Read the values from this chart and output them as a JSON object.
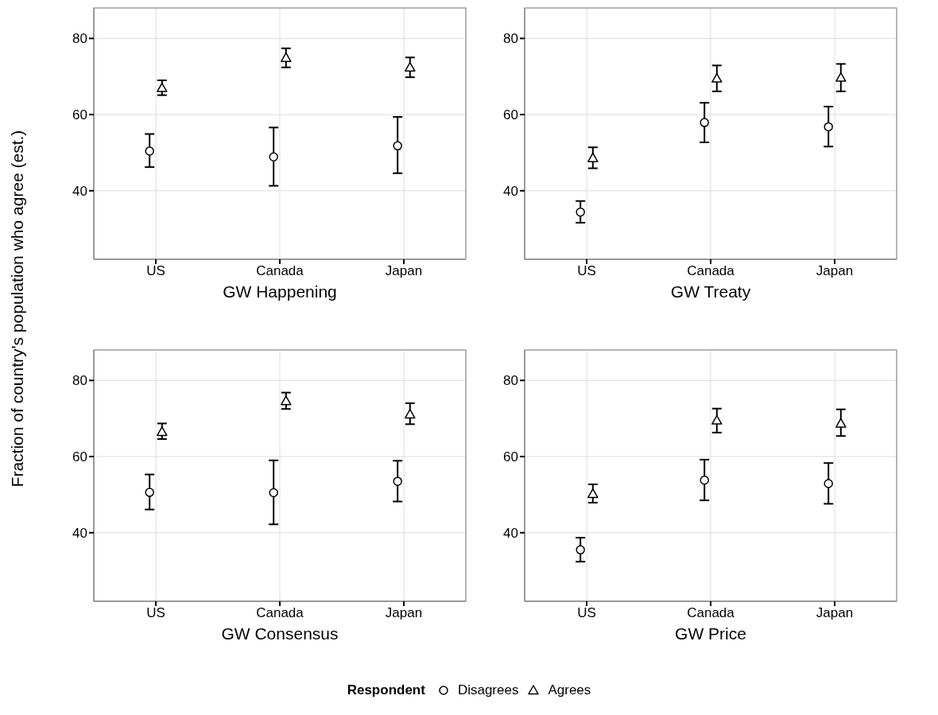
{
  "chart_data": [
    {
      "type": "scatter",
      "xlabel": "GW Happening",
      "ylabel": "Fraction of country's population who agree (est.)",
      "legend": "bottom",
      "legend_title": "Respondent",
      "grid": true,
      "categories": [
        "US",
        "Canada",
        "Japan"
      ],
      "ylim": [
        22,
        88
      ],
      "yticks": [
        40,
        60,
        80
      ],
      "series": [
        {
          "name": "Disagrees",
          "color": "#000000",
          "marker": "circle",
          "values": [
            50.4,
            48.9,
            51.8
          ],
          "errors": [
            [
              46.2,
              54.9
            ],
            [
              41.3,
              56.6
            ],
            [
              44.6,
              59.4
            ]
          ]
        },
        {
          "name": "Agrees",
          "color": "#000000",
          "marker": "triangle",
          "values": [
            67.0,
            74.9,
            72.4
          ],
          "errors": [
            [
              65.1,
              69.0
            ],
            [
              72.4,
              77.4
            ],
            [
              69.8,
              75.0
            ]
          ]
        }
      ]
    },
    {
      "type": "scatter",
      "xlabel": "GW Treaty",
      "grid": true,
      "categories": [
        "US",
        "Canada",
        "Japan"
      ],
      "ylim": [
        22,
        88
      ],
      "yticks": [
        40,
        60,
        80
      ],
      "series": [
        {
          "color": "#000000",
          "marker": "circle",
          "values": [
            34.4,
            57.9,
            56.8
          ],
          "errors": [
            [
              31.6,
              37.3
            ],
            [
              52.7,
              63.1
            ],
            [
              51.6,
              62.1
            ]
          ]
        },
        {
          "color": "#000000",
          "marker": "triangle",
          "values": [
            48.6,
            69.5,
            69.7
          ],
          "errors": [
            [
              45.9,
              51.4
            ],
            [
              66.1,
              72.9
            ],
            [
              66.1,
              73.3
            ]
          ]
        }
      ]
    },
    {
      "type": "scatter",
      "xlabel": "GW Consensus",
      "grid": true,
      "categories": [
        "US",
        "Canada",
        "Japan"
      ],
      "ylim": [
        22,
        88
      ],
      "yticks": [
        40,
        60,
        80
      ],
      "series": [
        {
          "color": "#000000",
          "marker": "circle",
          "values": [
            50.6,
            50.5,
            53.5
          ],
          "errors": [
            [
              46.1,
              55.3
            ],
            [
              42.2,
              59.0
            ],
            [
              48.2,
              58.9
            ]
          ]
        },
        {
          "color": "#000000",
          "marker": "triangle",
          "values": [
            66.5,
            74.6,
            71.1
          ],
          "errors": [
            [
              64.6,
              68.7
            ],
            [
              72.5,
              76.8
            ],
            [
              68.5,
              74.0
            ]
          ]
        }
      ]
    },
    {
      "type": "scatter",
      "xlabel": "GW Price",
      "grid": true,
      "categories": [
        "US",
        "Canada",
        "Japan"
      ],
      "ylim": [
        22,
        88
      ],
      "yticks": [
        40,
        60,
        80
      ],
      "series": [
        {
          "color": "#000000",
          "marker": "circle",
          "values": [
            35.5,
            53.8,
            52.9
          ],
          "errors": [
            [
              32.4,
              38.7
            ],
            [
              48.5,
              59.2
            ],
            [
              47.6,
              58.3
            ]
          ]
        },
        {
          "color": "#000000",
          "marker": "triangle",
          "values": [
            50.2,
            69.5,
            68.7
          ],
          "errors": [
            [
              47.9,
              52.7
            ],
            [
              66.3,
              72.6
            ],
            [
              65.4,
              72.4
            ]
          ]
        }
      ]
    }
  ]
}
